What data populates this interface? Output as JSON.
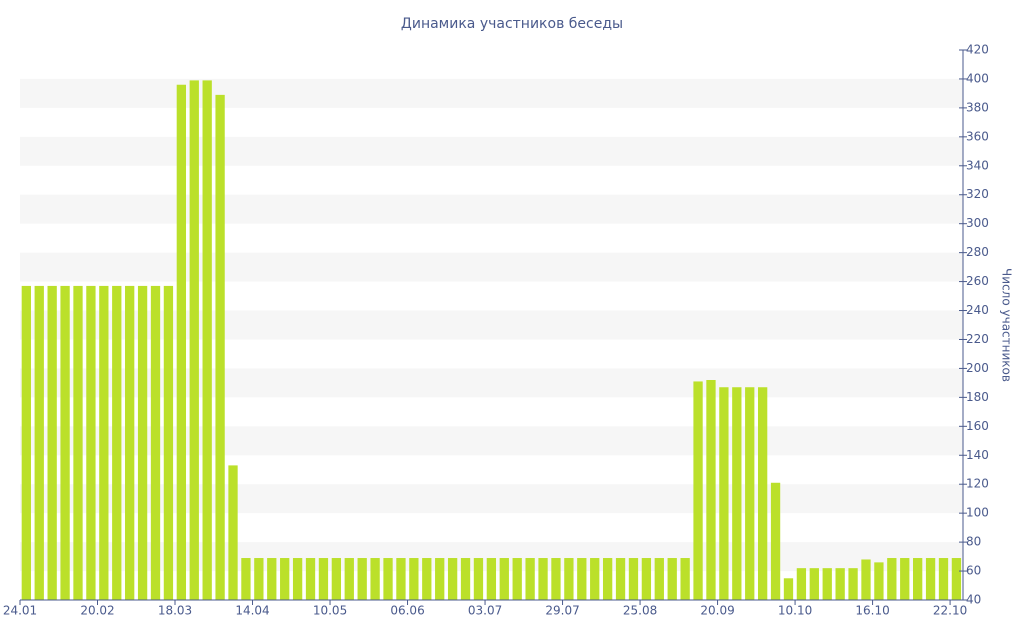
{
  "chart_data": {
    "type": "bar",
    "title": "Динамика участников беседы",
    "y_label": "Число участников",
    "categories": [
      "24.01",
      null,
      null,
      null,
      null,
      null,
      "20.02",
      null,
      null,
      null,
      null,
      null,
      "18.03",
      null,
      null,
      null,
      null,
      null,
      "14.04",
      null,
      null,
      null,
      null,
      null,
      "10.05",
      null,
      null,
      null,
      null,
      null,
      "06.06",
      null,
      null,
      null,
      null,
      null,
      "03.07",
      null,
      null,
      null,
      null,
      null,
      "29.07",
      null,
      null,
      null,
      null,
      null,
      "25.08",
      null,
      null,
      null,
      null,
      null,
      "20.09",
      null,
      null,
      null,
      null,
      null,
      "10.10",
      null,
      null,
      null,
      null,
      null,
      "16.10",
      null,
      null,
      null,
      null,
      null,
      "22.10"
    ],
    "values": [
      257,
      257,
      257,
      257,
      257,
      257,
      257,
      257,
      257,
      257,
      257,
      257,
      396,
      399,
      399,
      389,
      133,
      69,
      69,
      69,
      69,
      69,
      69,
      69,
      69,
      69,
      69,
      69,
      69,
      69,
      69,
      69,
      69,
      69,
      69,
      69,
      69,
      69,
      69,
      69,
      69,
      69,
      69,
      69,
      69,
      69,
      69,
      69,
      69,
      69,
      69,
      69,
      191,
      192,
      187,
      187,
      187,
      187,
      121,
      55,
      62,
      62,
      62,
      62,
      62,
      68,
      66,
      69,
      69,
      69,
      69,
      69,
      69
    ],
    "color": "#bbe02a",
    "ylim": [
      40,
      420
    ],
    "yticks": [
      40,
      60,
      80,
      100,
      120,
      140,
      160,
      180,
      200,
      220,
      240,
      260,
      280,
      300,
      320,
      340,
      360,
      380,
      400,
      420
    ],
    "grid": "bands",
    "y_axis_side": "right"
  }
}
